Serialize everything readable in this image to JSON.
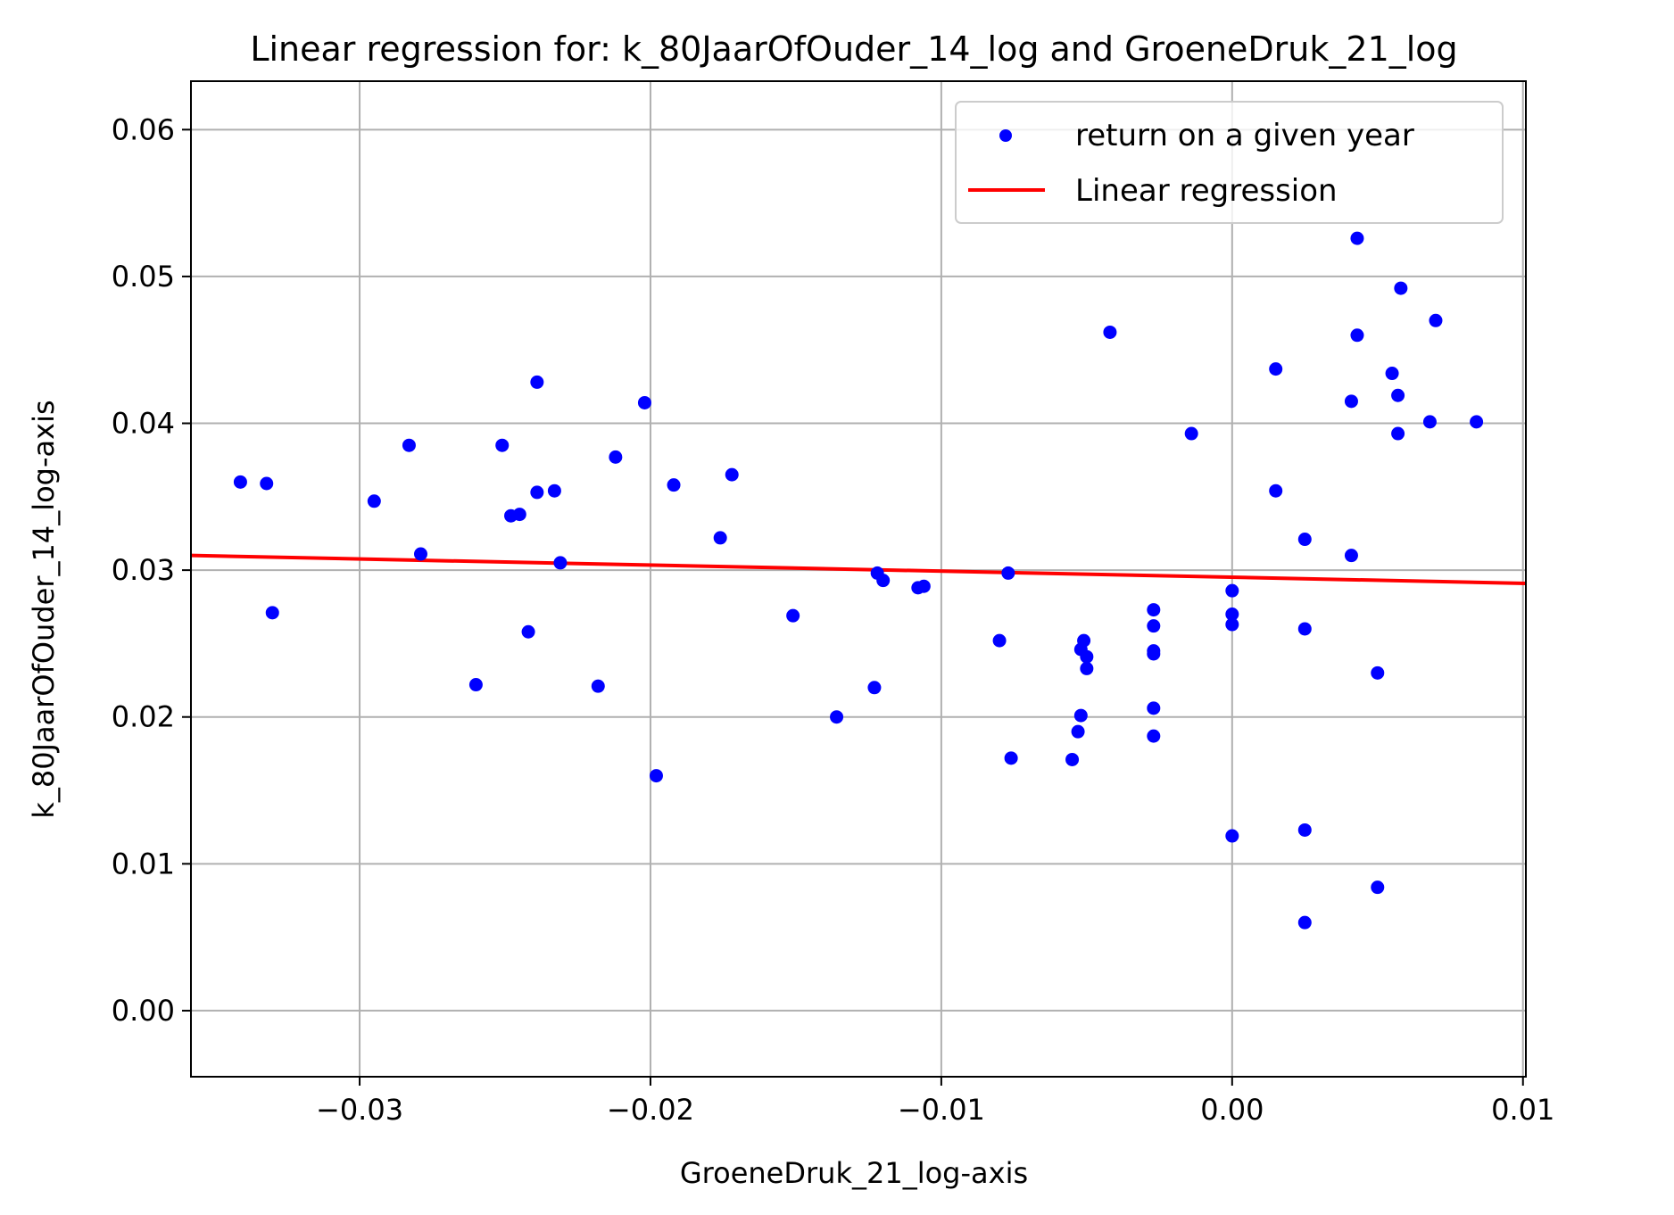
{
  "chart_data": {
    "type": "scatter",
    "title": "Linear regression for: k_80JaarOfOuder_14_log and GroeneDruk_21_log",
    "xlabel": "GroeneDruk_21_log-axis",
    "ylabel": "k_80JaarOfOuder_14_log-axis",
    "xlim": [
      -0.0358,
      0.0101
    ],
    "ylim": [
      -0.0045,
      0.0633
    ],
    "xticks": [
      -0.03,
      -0.02,
      -0.01,
      0.0,
      0.01
    ],
    "xtick_labels": [
      "−0.03",
      "−0.02",
      "−0.01",
      "0.00",
      "0.01"
    ],
    "yticks": [
      0.0,
      0.01,
      0.02,
      0.03,
      0.04,
      0.05,
      0.06
    ],
    "ytick_labels": [
      "0.00",
      "0.01",
      "0.02",
      "0.03",
      "0.04",
      "0.05",
      "0.06"
    ],
    "grid": true,
    "legend_position": "top-right",
    "series": [
      {
        "name": "return on a given year",
        "kind": "scatter",
        "color": "#0000ff",
        "points": [
          [
            -0.0341,
            0.036
          ],
          [
            -0.0332,
            0.0359
          ],
          [
            -0.033,
            0.0271
          ],
          [
            -0.0295,
            0.0347
          ],
          [
            -0.0283,
            0.0385
          ],
          [
            -0.0279,
            0.0311
          ],
          [
            -0.026,
            0.0222
          ],
          [
            -0.0251,
            0.0385
          ],
          [
            -0.0248,
            0.0337
          ],
          [
            -0.0245,
            0.0338
          ],
          [
            -0.0242,
            0.0258
          ],
          [
            -0.0239,
            0.0428
          ],
          [
            -0.0239,
            0.0353
          ],
          [
            -0.0233,
            0.0354
          ],
          [
            -0.0231,
            0.0305
          ],
          [
            -0.0218,
            0.0221
          ],
          [
            -0.0212,
            0.0377
          ],
          [
            -0.0202,
            0.0414
          ],
          [
            -0.0198,
            0.016
          ],
          [
            -0.0192,
            0.0358
          ],
          [
            -0.0176,
            0.0322
          ],
          [
            -0.0172,
            0.0365
          ],
          [
            -0.0151,
            0.0269
          ],
          [
            -0.0136,
            0.02
          ],
          [
            -0.0123,
            0.022
          ],
          [
            -0.0122,
            0.0298
          ],
          [
            -0.012,
            0.0293
          ],
          [
            -0.0108,
            0.0288
          ],
          [
            -0.0106,
            0.0289
          ],
          [
            -0.008,
            0.0252
          ],
          [
            -0.0077,
            0.0298
          ],
          [
            -0.0076,
            0.0172
          ],
          [
            -0.0055,
            0.0171
          ],
          [
            -0.0053,
            0.019
          ],
          [
            -0.0052,
            0.0246
          ],
          [
            -0.0052,
            0.0201
          ],
          [
            -0.0051,
            0.0252
          ],
          [
            -0.005,
            0.0241
          ],
          [
            -0.005,
            0.0233
          ],
          [
            -0.0042,
            0.0462
          ],
          [
            -0.0027,
            0.0273
          ],
          [
            -0.0027,
            0.0262
          ],
          [
            -0.0027,
            0.0243
          ],
          [
            -0.0027,
            0.0245
          ],
          [
            -0.0027,
            0.0206
          ],
          [
            -0.0027,
            0.0187
          ],
          [
            -0.0014,
            0.0393
          ],
          [
            0.0,
            0.0286
          ],
          [
            0.0,
            0.027
          ],
          [
            0.0,
            0.0263
          ],
          [
            0.0,
            0.0119
          ],
          [
            0.0015,
            0.0437
          ],
          [
            0.0015,
            0.0354
          ],
          [
            0.0025,
            0.0321
          ],
          [
            0.0025,
            0.026
          ],
          [
            0.0025,
            0.0123
          ],
          [
            0.0025,
            0.006
          ],
          [
            0.0041,
            0.0415
          ],
          [
            0.0041,
            0.031
          ],
          [
            0.0043,
            0.0526
          ],
          [
            0.0043,
            0.046
          ],
          [
            0.005,
            0.023
          ],
          [
            0.005,
            0.0084
          ],
          [
            0.0055,
            0.0434
          ],
          [
            0.0057,
            0.0419
          ],
          [
            0.0057,
            0.0393
          ],
          [
            0.0058,
            0.0492
          ],
          [
            0.0068,
            0.0401
          ],
          [
            0.007,
            0.047
          ],
          [
            0.0084,
            0.0401
          ]
        ]
      },
      {
        "name": "Linear regression",
        "kind": "line",
        "color": "#ff0000",
        "points": [
          [
            -0.0358,
            0.031
          ],
          [
            0.0101,
            0.0291
          ]
        ]
      }
    ]
  }
}
